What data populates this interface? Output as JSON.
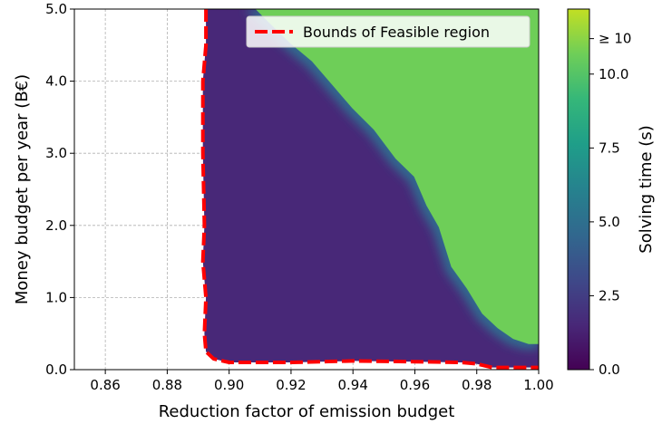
{
  "chart_data": {
    "type": "heatmap",
    "title": "",
    "xlabel": "Reduction factor of emission budget",
    "ylabel": "Money budget per year (B€)",
    "xlim": [
      0.85,
      1.0
    ],
    "ylim": [
      0.0,
      5.0
    ],
    "x_ticks": [
      0.86,
      0.88,
      0.9,
      0.92,
      0.94,
      0.96,
      0.98,
      1.0
    ],
    "x_tick_labels": [
      "0.86",
      "0.88",
      "0.90",
      "0.92",
      "0.94",
      "0.96",
      "0.98",
      "1.00"
    ],
    "y_ticks": [
      0.0,
      1.0,
      2.0,
      3.0,
      4.0,
      5.0
    ],
    "y_tick_labels": [
      "0.0",
      "1.0",
      "2.0",
      "3.0",
      "4.0",
      "5.0"
    ],
    "grid": true,
    "legend": {
      "position": "top-right",
      "entries": [
        {
          "label": "Bounds of Feasible region",
          "color": "#ff0000",
          "style": "dashed"
        }
      ]
    },
    "colorbar": {
      "label": "Solving time (s)",
      "min": 0.0,
      "max": 12.2,
      "ticks": [
        0.0,
        2.5,
        5.0,
        7.5,
        10.0,
        11.2
      ],
      "tick_labels": [
        "0.0",
        "2.5",
        "5.0",
        "7.5",
        "10.0",
        "≥ 10"
      ],
      "colormap": "viridis"
    },
    "regions": {
      "fast_solve_value": 1.2,
      "slow_solve_value": 11.0
    },
    "feasible_boundary": [
      [
        0.8925,
        5.0
      ],
      [
        0.8925,
        4.5
      ],
      [
        0.8915,
        4.0
      ],
      [
        0.8915,
        3.0
      ],
      [
        0.892,
        2.0
      ],
      [
        0.8915,
        1.5
      ],
      [
        0.8925,
        1.0
      ],
      [
        0.892,
        0.5
      ],
      [
        0.8925,
        0.25
      ],
      [
        0.895,
        0.15
      ],
      [
        0.9,
        0.1
      ],
      [
        0.92,
        0.1
      ],
      [
        0.94,
        0.12
      ],
      [
        0.96,
        0.11
      ],
      [
        0.975,
        0.1
      ],
      [
        0.98,
        0.08
      ],
      [
        0.985,
        0.03
      ],
      [
        1.0,
        0.03
      ]
    ],
    "slow_region_boundary": [
      [
        0.905,
        5.0
      ],
      [
        0.912,
        4.7
      ],
      [
        0.918,
        4.45
      ],
      [
        0.925,
        4.2
      ],
      [
        0.932,
        3.85
      ],
      [
        0.938,
        3.55
      ],
      [
        0.945,
        3.25
      ],
      [
        0.952,
        2.85
      ],
      [
        0.958,
        2.6
      ],
      [
        0.962,
        2.2
      ],
      [
        0.966,
        1.9
      ],
      [
        0.97,
        1.35
      ],
      [
        0.975,
        1.05
      ],
      [
        0.98,
        0.7
      ],
      [
        0.985,
        0.5
      ],
      [
        0.99,
        0.35
      ],
      [
        0.995,
        0.28
      ],
      [
        1.0,
        0.28
      ]
    ]
  }
}
